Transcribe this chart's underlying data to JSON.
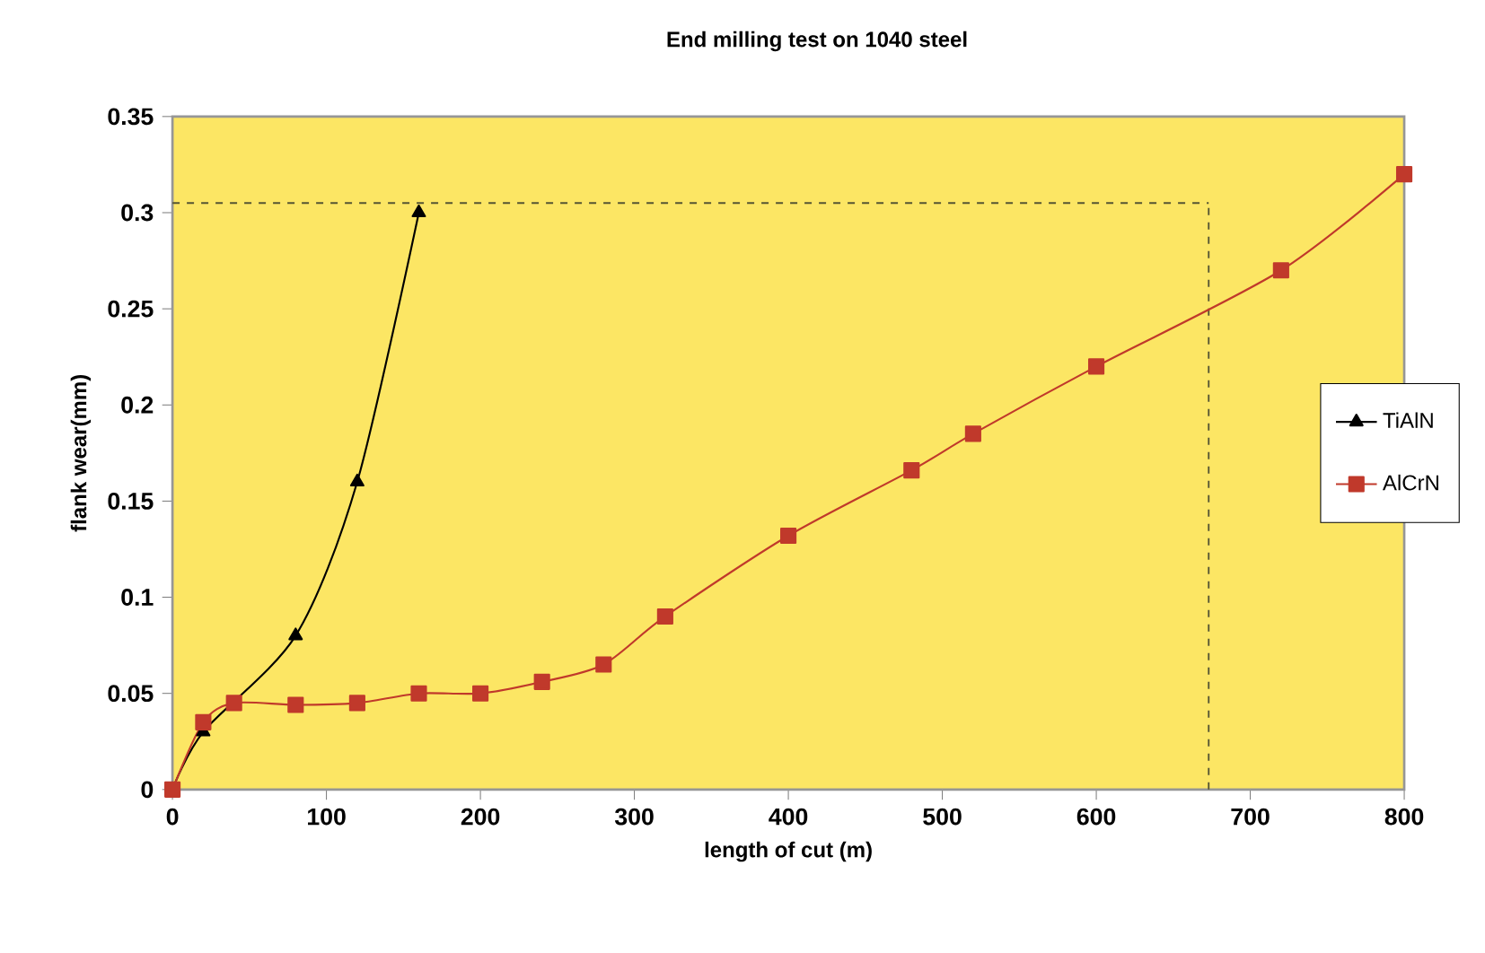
{
  "chart_data": {
    "type": "line",
    "title": "End milling test on 1040 steel",
    "xlabel": "length of cut (m)",
    "ylabel": "flank wear(mm)",
    "xlim": [
      0,
      800
    ],
    "xticks": [
      0,
      100,
      200,
      300,
      400,
      500,
      600,
      700,
      800
    ],
    "ylim": [
      0,
      0.35
    ],
    "yticks": [
      0,
      0.05,
      0.1,
      0.15,
      0.2,
      0.25,
      0.3,
      0.35
    ],
    "grid": false,
    "legend": "right",
    "series": [
      {
        "name": "TiAlN",
        "color": "#000000",
        "marker": "triangle",
        "x": [
          0,
          20,
          80,
          120,
          160
        ],
        "values": [
          0,
          0.03,
          0.08,
          0.16,
          0.3
        ]
      },
      {
        "name": "AlCrN",
        "color": "#c0392b",
        "marker": "square",
        "x": [
          0,
          20,
          40,
          80,
          120,
          160,
          200,
          240,
          280,
          320,
          400,
          480,
          520,
          600,
          720,
          800
        ],
        "values": [
          0,
          0.035,
          0.045,
          0.044,
          0.045,
          0.05,
          0.05,
          0.056,
          0.065,
          0.09,
          0.132,
          0.166,
          0.185,
          0.22,
          0.27,
          0.32
        ]
      }
    ],
    "ref_lines": [
      {
        "axis": "x",
        "value": 673,
        "line_style": "dashed",
        "color": "#555533"
      },
      {
        "axis": "y",
        "value": 0.305,
        "line_style": "dashed",
        "color": "#555533"
      }
    ]
  }
}
